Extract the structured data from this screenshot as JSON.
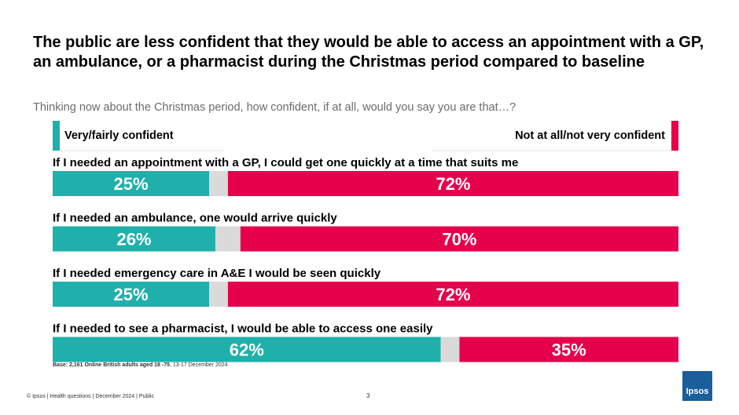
{
  "title": "The public are less confident that they would be able to access an appointment with a GP, an ambulance, or a pharmacist during the Christmas period compared to baseline",
  "subtitle": "Thinking now about the Christmas period, how confident, if at all, would you say you are that…?",
  "legend": {
    "left_label": "Very/fairly confident",
    "right_label": "Not at all/not very confident"
  },
  "colors": {
    "confident": "#1fb0ab",
    "neutral": "#dadada",
    "not_confident": "#e6004c"
  },
  "chart_data": {
    "type": "bar",
    "orientation": "horizontal-stacked-100",
    "categories": [
      "If I needed an appointment with a GP, I could get one quickly at a time that suits me",
      "If I needed an ambulance, one would arrive quickly",
      "If I needed emergency care in A&E I would be seen quickly",
      "If I needed to see a pharmacist, I would be able to access one easily"
    ],
    "series": [
      {
        "name": "Very/fairly confident",
        "values": [
          25,
          26,
          25,
          62
        ],
        "labels": [
          "25%",
          "26%",
          "25%",
          "62%"
        ]
      },
      {
        "values": [
          3,
          4,
          3,
          3
        ],
        "labels": []
      },
      {
        "name": "Not at all/not very confident",
        "values": [
          72,
          70,
          72,
          35
        ],
        "labels": [
          "72%",
          "70%",
          "72%",
          "35%"
        ]
      }
    ],
    "xlim": [
      0,
      100
    ],
    "grid": false,
    "legend_position": "top"
  },
  "footnote": {
    "base_bold": "Base: 2,161 Online British adults aged 18 -75",
    "base_rest": ", 13-17 December 2024"
  },
  "footer": "© Ipsos | Health questions | December 2024 | Public",
  "page_number": "3",
  "logo_text": "Ipsos"
}
